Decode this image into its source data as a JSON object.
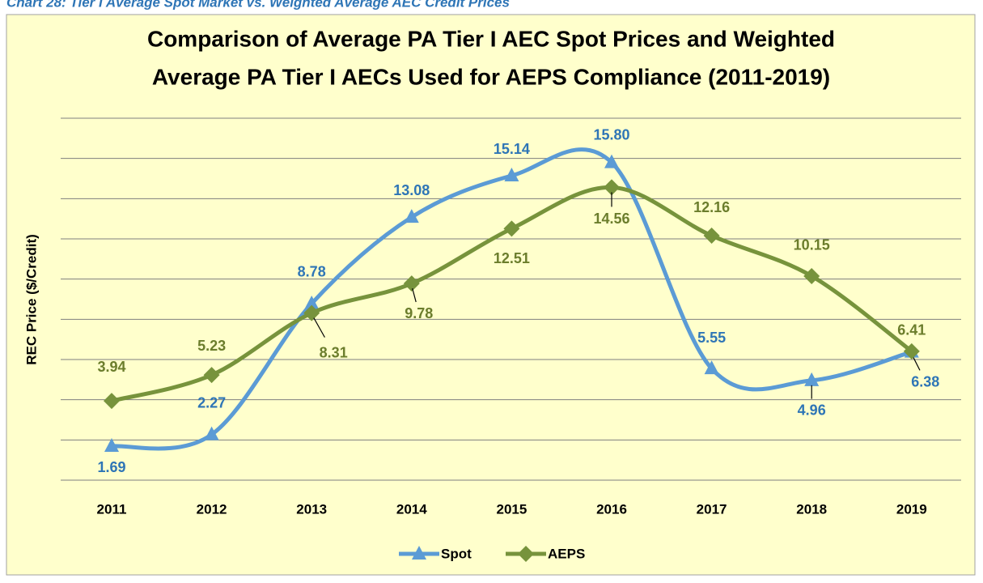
{
  "caption": "Chart 28: Tier I Average Spot Market vs. Weighted Average AEC Credit Prices",
  "chart_data": {
    "type": "line",
    "title": [
      "Comparison of Average PA Tier I AEC Spot Prices and Weighted",
      "Average PA Tier I AECs Used for AEPS Compliance (2011-2019)"
    ],
    "y_label": "REC Price ($/Credit)",
    "categories": [
      "2011",
      "2012",
      "2013",
      "2014",
      "2015",
      "2016",
      "2017",
      "2018",
      "2019"
    ],
    "series": [
      {
        "name": "Spot",
        "color": "#5b9bd5",
        "label_color": "#2e75b6",
        "marker": "triangle",
        "values": [
          1.69,
          2.27,
          8.78,
          13.08,
          15.14,
          15.8,
          5.55,
          4.96,
          6.38
        ],
        "value_labels": [
          "1.69",
          "2.27",
          "8.78",
          "13.08",
          "15.14",
          "15.80",
          "5.55",
          "4.96",
          "6.38"
        ]
      },
      {
        "name": "AEPS",
        "color": "#77933c",
        "label_color": "#6b7d2c",
        "marker": "diamond",
        "values": [
          3.94,
          5.23,
          8.31,
          9.78,
          12.51,
          14.56,
          12.16,
          10.15,
          6.41
        ],
        "value_labels": [
          "3.94",
          "5.23",
          "8.31",
          "9.78",
          "12.51",
          "14.56",
          "12.16",
          "10.15",
          "6.41"
        ]
      }
    ],
    "ylim": [
      0,
      18
    ],
    "yticks": [
      0,
      2,
      4,
      6,
      8,
      10,
      12,
      14,
      16,
      18
    ],
    "grid": true,
    "smooth": true,
    "legend": "bottom"
  }
}
